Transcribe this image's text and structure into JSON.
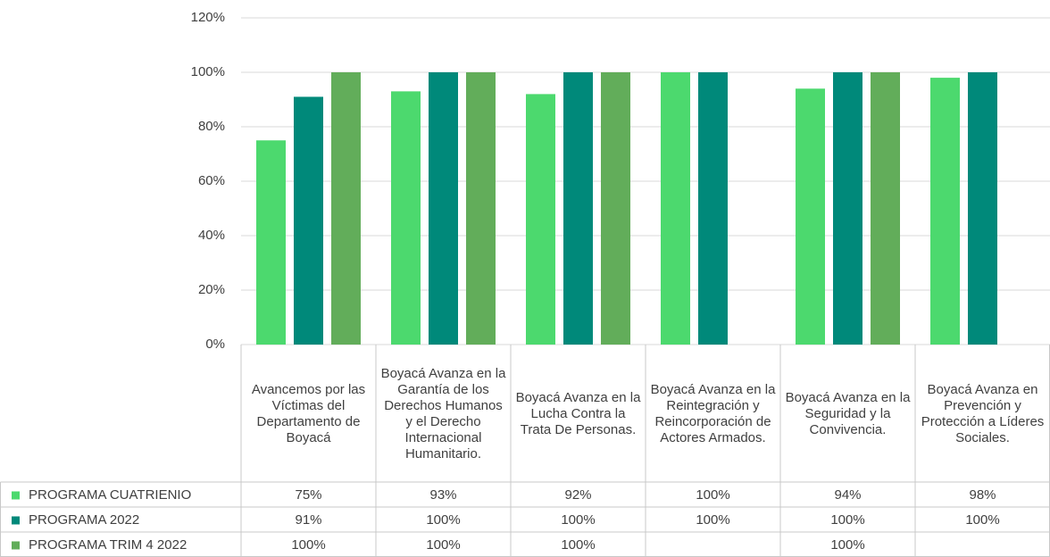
{
  "chart_data": {
    "type": "bar",
    "categories": [
      "Avancemos por las Víctimas del Departamento de Boyacá",
      "Boyacá Avanza en la Garantía de los Derechos Humanos y el Derecho Internacional Humanitario.",
      "Boyacá Avanza en la Lucha Contra la Trata De Personas.",
      "Boyacá Avanza en la Reintegración y Reincorporación de Actores Armados.",
      "Boyacá Avanza en la Seguridad y la Convivencia.",
      "Boyacá Avanza en Prevención y Protección a Líderes Sociales."
    ],
    "series": [
      {
        "name": "PROGRAMA CUATRIENIO",
        "color": "#4cd96e",
        "values": [
          75,
          93,
          92,
          100,
          94,
          98
        ],
        "value_labels": [
          "75%",
          "93%",
          "92%",
          "100%",
          "94%",
          "98%"
        ]
      },
      {
        "name": "PROGRAMA 2022",
        "color": "#00897a",
        "values": [
          91,
          100,
          100,
          100,
          100,
          100
        ],
        "value_labels": [
          "91%",
          "100%",
          "100%",
          "100%",
          "100%",
          "100%"
        ]
      },
      {
        "name": "PROGRAMA TRIM 4 2022",
        "color": "#62ad5a",
        "values": [
          100,
          100,
          100,
          null,
          100,
          null
        ],
        "value_labels": [
          "100%",
          "100%",
          "100%",
          null,
          "100%",
          null
        ]
      }
    ],
    "ylim": [
      0,
      120
    ],
    "yticks": [
      {
        "value": 0,
        "label": "0%"
      },
      {
        "value": 20,
        "label": "20%"
      },
      {
        "value": 40,
        "label": "40%"
      },
      {
        "value": 60,
        "label": "60%"
      },
      {
        "value": 80,
        "label": "80%"
      },
      {
        "value": 100,
        "label": "100%"
      },
      {
        "value": 120,
        "label": "120%"
      }
    ],
    "grid": true,
    "data_table": true
  }
}
